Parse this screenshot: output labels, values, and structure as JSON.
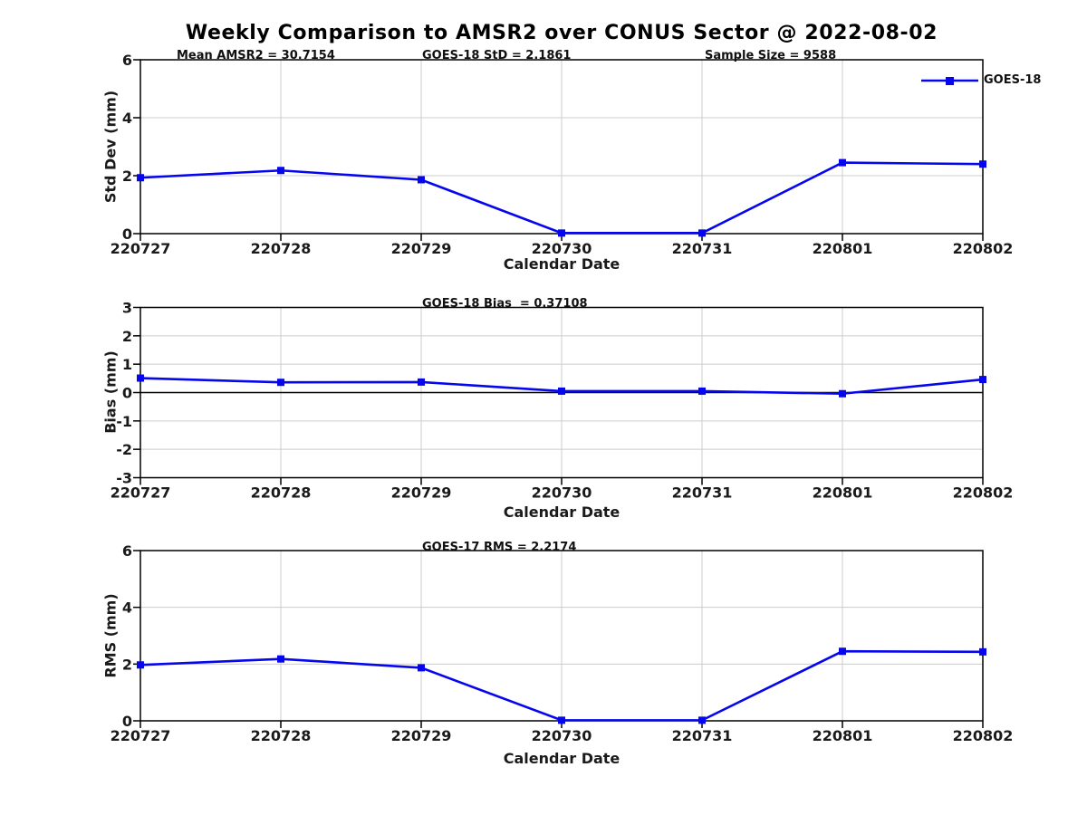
{
  "figure": {
    "title": "Weekly Comparison to AMSR2 over CONUS Sector @ 2022-08-02",
    "colors": {
      "line": "#0606ee",
      "grid": "#cccccc",
      "axis": "#000000"
    }
  },
  "chart_data": [
    {
      "type": "line",
      "x_categories": [
        "220727",
        "220728",
        "220729",
        "220730",
        "220731",
        "220801",
        "220802"
      ],
      "series": [
        {
          "name": "GOES-18",
          "color": "#0606ee",
          "marker": "square",
          "values": [
            1.93,
            2.18,
            1.86,
            0.02,
            0.02,
            2.45,
            2.4
          ]
        }
      ],
      "xlabel": "Calendar Date",
      "ylabel": "Std Dev (mm)",
      "ylim": [
        0,
        6
      ],
      "yticks": [
        0,
        2,
        4,
        6
      ],
      "grid": true,
      "legend": {
        "show": true,
        "label": "GOES-18",
        "position": "top-right"
      },
      "annotations": [
        {
          "text": "Mean AMSR2 = 30.7154"
        },
        {
          "text": "GOES-18 StD = 2.1861"
        },
        {
          "text": "Sample Size = 9588"
        }
      ]
    },
    {
      "type": "line",
      "x_categories": [
        "220727",
        "220728",
        "220729",
        "220730",
        "220731",
        "220801",
        "220802"
      ],
      "series": [
        {
          "name": "GOES-18",
          "color": "#0606ee",
          "marker": "square",
          "values": [
            0.51,
            0.36,
            0.37,
            0.05,
            0.05,
            -0.04,
            0.46
          ]
        }
      ],
      "xlabel": "Calendar Date",
      "ylabel": "Bias (mm)",
      "ylim": [
        -3,
        3
      ],
      "yticks": [
        -3,
        -2,
        -1,
        0,
        1,
        2,
        3
      ],
      "grid": true,
      "zero_line": true,
      "annotations": [
        {
          "text": "GOES-18 Bias  = 0.37108"
        }
      ]
    },
    {
      "type": "line",
      "x_categories": [
        "220727",
        "220728",
        "220729",
        "220730",
        "220731",
        "220801",
        "220802"
      ],
      "series": [
        {
          "name": "GOES-18",
          "color": "#0606ee",
          "marker": "square",
          "values": [
            1.97,
            2.18,
            1.87,
            0.02,
            0.02,
            2.45,
            2.43
          ]
        }
      ],
      "xlabel": "Calendar Date",
      "ylabel": "RMS (mm)",
      "ylim": [
        0,
        6
      ],
      "yticks": [
        0,
        2,
        4,
        6
      ],
      "grid": true,
      "annotations": [
        {
          "text": "GOES-17 RMS = 2.2174"
        }
      ]
    }
  ]
}
